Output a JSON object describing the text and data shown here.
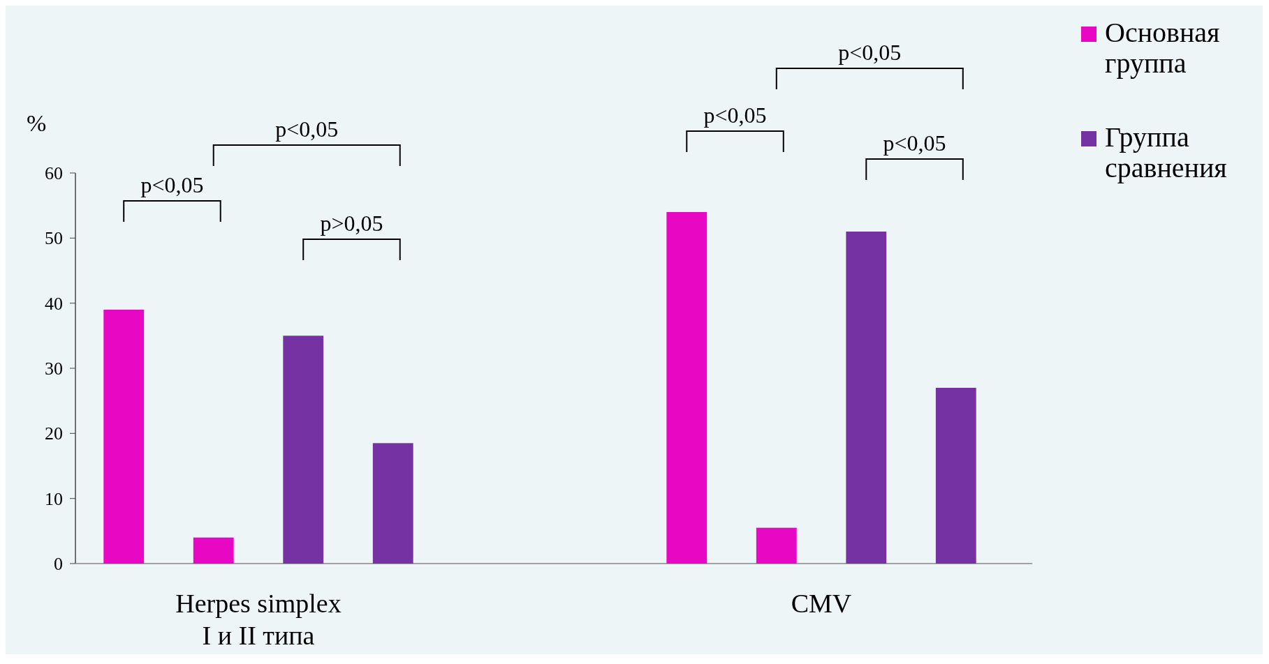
{
  "chart_data": {
    "type": "bar",
    "categories": [
      "Herpes simplex\nI и II типа",
      "CMV"
    ],
    "series": [
      {
        "name": "Основная\nгруппа",
        "color": "#e807c3",
        "values": [
          39,
          54
        ]
      },
      {
        "color": "#e807c3",
        "values": [
          4,
          5.5
        ]
      },
      {
        "name": "Группа\nсравнения",
        "color": "#7532a3",
        "values": [
          35,
          51
        ]
      },
      {
        "color": "#7532a3",
        "values": [
          18.5,
          27
        ]
      }
    ],
    "ylabel": "%",
    "ylim": [
      0,
      60
    ],
    "yticks": [
      0,
      10,
      20,
      30,
      40,
      50,
      60
    ],
    "legend": "top right",
    "annotations": [
      "p<0,05",
      "p<0,05",
      "p>0,05",
      "p<0,05",
      "p<0,05",
      "p<0,05"
    ]
  }
}
